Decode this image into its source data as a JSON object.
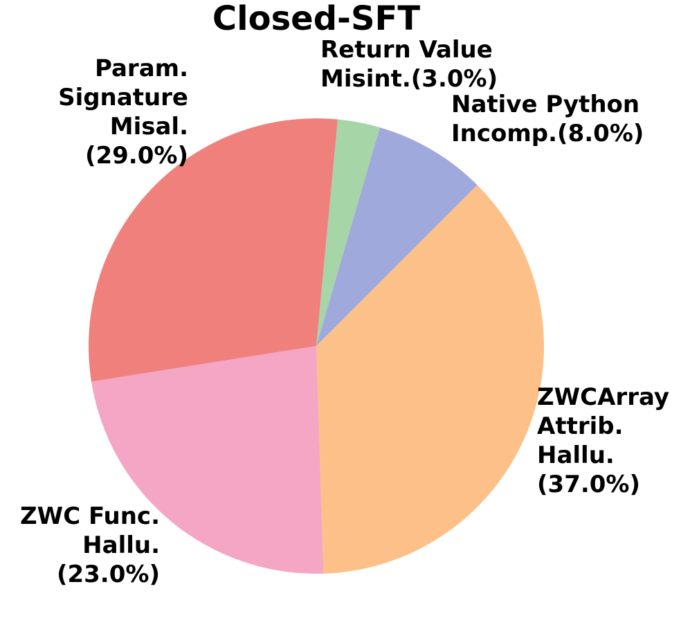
{
  "chart_data": {
    "type": "pie",
    "title": "Closed-SFT",
    "categories": [
      "Native Python\nIncomp.(8.0%)",
      "Return Value\nMisint.(3.0%)",
      "Param.\nSignature\nMisal.\n(29.0%)",
      "ZWC Func.\nHallu.\n(23.0%)",
      "ZWCArray\nAttrib.\nHallu.\n(37.0%)"
    ],
    "values": [
      8,
      3,
      29,
      23,
      37
    ],
    "colors": [
      "#9fa9db",
      "#a6d5a8",
      "#ef807c",
      "#f4a6c4",
      "#fcc088"
    ],
    "startangle": 45
  }
}
